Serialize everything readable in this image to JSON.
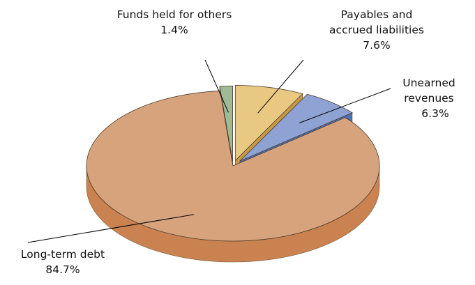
{
  "chart_data": {
    "type": "pie",
    "title": "",
    "style": "3d-exploded",
    "series": [
      {
        "slices": [
          {
            "label": "Long-term debt",
            "value": 84.7,
            "value_label": "84.7%",
            "color": "#d7a37c",
            "side_color": "#c98250"
          },
          {
            "label": "Funds held for others",
            "value": 1.4,
            "value_label": "1.4%",
            "color": "#9fbb96",
            "side_color": "#6f9468"
          },
          {
            "label": "Payables and accrued liabilities",
            "label_lines": [
              "Payables and",
              "accrued liabilities"
            ],
            "value": 7.6,
            "value_label": "7.6%",
            "color": "#e9c882",
            "side_color": "#c99a45"
          },
          {
            "label": "Unearned revenues",
            "label_lines": [
              "Unearned",
              "revenues"
            ],
            "value": 6.3,
            "value_label": "6.3%",
            "color": "#8ea2d4",
            "side_color": "#4d71b8"
          }
        ]
      }
    ]
  }
}
